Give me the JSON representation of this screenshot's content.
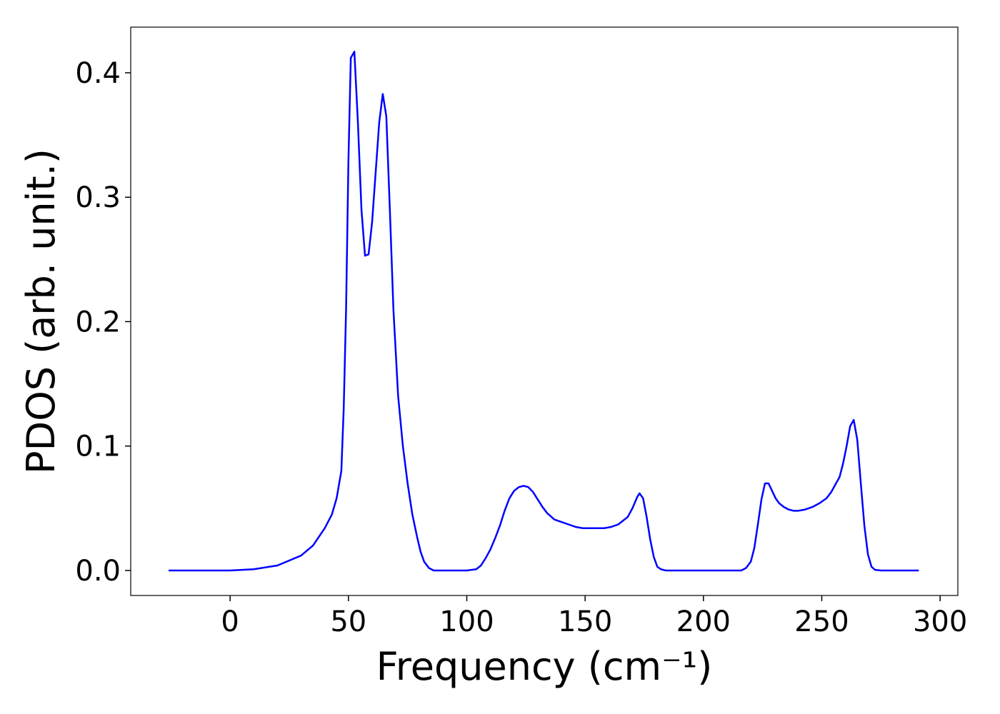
{
  "chart_data": {
    "type": "line",
    "xlabel": "Frequency (cm⁻¹)",
    "ylabel": "PDOS (arb. unit.)",
    "xlim": [
      -42,
      307.5
    ],
    "ylim": [
      -0.0201,
      0.4367
    ],
    "xticks": [
      0,
      50,
      100,
      150,
      200,
      250,
      300
    ],
    "yticks": [
      {
        "value": 0,
        "label": "0.0"
      },
      0.1,
      0.2,
      0.3,
      0.4
    ],
    "series": [
      {
        "name": "PDOS",
        "color": "#0000ff",
        "x": [
          -26,
          0,
          10,
          20,
          30,
          35,
          40,
          43,
          45,
          47,
          48,
          49,
          50,
          51,
          52.5,
          54,
          55.5,
          57,
          58.5,
          60,
          61.5,
          63,
          64.5,
          66,
          67.5,
          69,
          71,
          73,
          75,
          77,
          79,
          80.5,
          82,
          84,
          86,
          100,
          104,
          106,
          108,
          110,
          112,
          114,
          116,
          118,
          120,
          122,
          124,
          126,
          128,
          130,
          132,
          134,
          137,
          140,
          143,
          146,
          149,
          152,
          155,
          158,
          161,
          164,
          166,
          168,
          170,
          172,
          173,
          174.5,
          176,
          177.5,
          179,
          180.5,
          182,
          184,
          216,
          218,
          220,
          221.5,
          223,
          224.5,
          226,
          227.5,
          229,
          230.5,
          232,
          234,
          236,
          238,
          240,
          243,
          246,
          249,
          252,
          254,
          256,
          257.5,
          259,
          260.5,
          262,
          263.5,
          265,
          266.5,
          268,
          269.5,
          271,
          272.5,
          275,
          291
        ],
        "values": [
          0,
          0,
          0.001,
          0.004,
          0.012,
          0.02,
          0.034,
          0.045,
          0.058,
          0.08,
          0.13,
          0.21,
          0.33,
          0.412,
          0.417,
          0.36,
          0.29,
          0.253,
          0.254,
          0.28,
          0.32,
          0.36,
          0.383,
          0.365,
          0.29,
          0.21,
          0.14,
          0.1,
          0.07,
          0.045,
          0.027,
          0.015,
          0.007,
          0.002,
          0,
          0,
          0.001,
          0.004,
          0.01,
          0.017,
          0.026,
          0.036,
          0.048,
          0.058,
          0.064,
          0.067,
          0.068,
          0.067,
          0.063,
          0.057,
          0.051,
          0.046,
          0.041,
          0.039,
          0.037,
          0.035,
          0.034,
          0.034,
          0.034,
          0.034,
          0.035,
          0.037,
          0.04,
          0.043,
          0.05,
          0.059,
          0.062,
          0.058,
          0.043,
          0.025,
          0.011,
          0.003,
          0.001,
          0,
          0,
          0.002,
          0.007,
          0.018,
          0.037,
          0.057,
          0.07,
          0.07,
          0.064,
          0.058,
          0.054,
          0.051,
          0.049,
          0.048,
          0.048,
          0.049,
          0.051,
          0.054,
          0.058,
          0.063,
          0.07,
          0.075,
          0.086,
          0.1,
          0.116,
          0.121,
          0.105,
          0.07,
          0.036,
          0.013,
          0.003,
          0.0005,
          0,
          0
        ]
      }
    ]
  }
}
